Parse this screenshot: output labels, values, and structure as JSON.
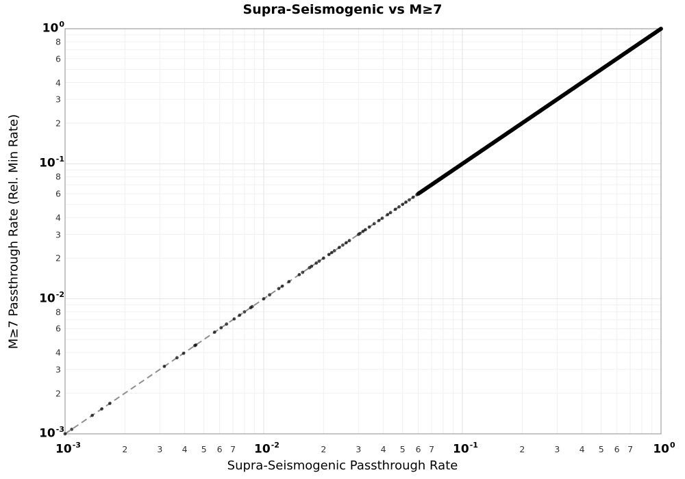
{
  "chart_data": {
    "type": "scatter",
    "title": "Supra-Seismogenic vs M≥7",
    "xlabel": "Supra-Seismogenic Passthrough Rate",
    "ylabel": "M≥7 Passthrough Rate (Rel. Min Rate)",
    "x_scale": "log",
    "y_scale": "log",
    "xlim": [
      0.001,
      1.0
    ],
    "ylim": [
      0.001,
      1.0
    ],
    "grid": true,
    "legend": "none",
    "x_major_ticks": [
      {
        "base": "10",
        "exp": "-3",
        "value": 0.001
      },
      {
        "base": "10",
        "exp": "-2",
        "value": 0.01
      },
      {
        "base": "10",
        "exp": "-1",
        "value": 0.1
      },
      {
        "base": "10",
        "exp": "0",
        "value": 1.0
      }
    ],
    "y_major_ticks": [
      {
        "base": "10",
        "exp": "0",
        "value": 1.0
      },
      {
        "base": "10",
        "exp": "-1",
        "value": 0.1
      },
      {
        "base": "10",
        "exp": "-2",
        "value": 0.01
      },
      {
        "base": "10",
        "exp": "-3",
        "value": 0.001
      }
    ],
    "x_minor_tick_digits": [
      2,
      3,
      4,
      5,
      6,
      7
    ],
    "x_minor_tick_decades": [
      -3,
      -2,
      -1
    ],
    "y_minor_tick_digits": [
      8,
      6,
      4,
      3,
      2
    ],
    "y_minor_tick_decades": [
      -1,
      -2,
      -3
    ],
    "grid_minor_digits": [
      2,
      3,
      4,
      5,
      6,
      7,
      8,
      9
    ],
    "identity_line": {
      "equation": "y = x",
      "from": 0.001,
      "to": 1.0,
      "style": "dashed",
      "color": "#8f8f8f"
    },
    "marker": {
      "shape": "circle",
      "color": "#000000",
      "opacity": 0.7,
      "radius": 2.4
    },
    "points_on_identity": [
      0.001,
      0.00108,
      0.00137,
      0.00153,
      0.00168,
      0.00316,
      0.00366,
      0.00395,
      0.0045,
      0.00455,
      0.00566,
      0.0061,
      0.0065,
      0.0071,
      0.00756,
      0.008,
      0.0086,
      0.00875,
      0.01,
      0.0107,
      0.0119,
      0.0124,
      0.0134,
      0.0151,
      0.0157,
      0.017,
      0.0174,
      0.0184,
      0.019,
      0.02,
      0.0213,
      0.022,
      0.0227,
      0.024,
      0.025,
      0.026,
      0.027,
      0.03,
      0.0305,
      0.0316,
      0.0325,
      0.034,
      0.036,
      0.038,
      0.0395,
      0.042,
      0.0435,
      0.046,
      0.048,
      0.05,
      0.052,
      0.054,
      0.0565,
      0.059
    ],
    "dense_band": {
      "from": 0.06,
      "to": 1.0,
      "count": 260,
      "note": "continuous overlap of points lying on y = x up to (1,1)"
    },
    "colors": {
      "grid_major": "#e2e2e2",
      "grid_minor": "#f0f0f0",
      "frame": "#a0a0a0",
      "dashed_line": "#8f8f8f",
      "point": "#000000",
      "title": "#000000",
      "minor_tick_label": "#333333"
    }
  }
}
